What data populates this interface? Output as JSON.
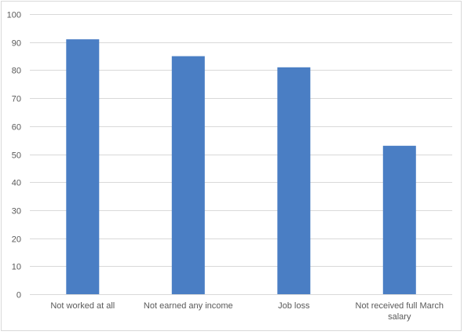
{
  "chart_data": {
    "type": "bar",
    "categories": [
      "Not worked at all",
      "Not earned any income",
      "Job loss",
      "Not received full March salary"
    ],
    "category_lines": [
      [
        "Not worked at all"
      ],
      [
        "Not earned any income"
      ],
      [
        "Job loss"
      ],
      [
        "Not received full March",
        "salary"
      ]
    ],
    "values": [
      91,
      85,
      81,
      53
    ],
    "title": "",
    "xlabel": "",
    "ylabel": "",
    "ylim": [
      0,
      100
    ],
    "yticks": [
      "0",
      "10",
      "20",
      "30",
      "40",
      "50",
      "60",
      "70",
      "80",
      "90",
      "100"
    ],
    "grid": true,
    "legend": "none",
    "bar_color": "#4a7ec4",
    "grid_color": "#d9d9d9"
  }
}
